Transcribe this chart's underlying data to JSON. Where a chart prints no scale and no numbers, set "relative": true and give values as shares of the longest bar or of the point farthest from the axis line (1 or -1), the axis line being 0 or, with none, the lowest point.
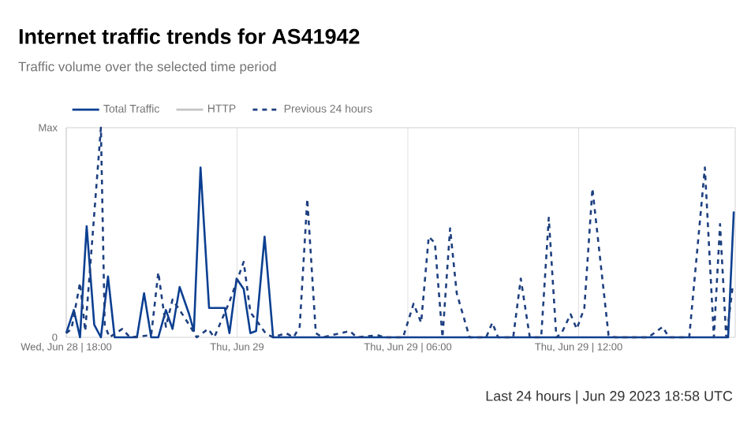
{
  "chart_data": {
    "type": "line",
    "title": "Internet traffic trends for AS41942",
    "subtitle": "Traffic volume over the selected time period",
    "relative": true,
    "xlim": [
      "2023-06-28T18:00",
      "2023-06-29T17:30"
    ],
    "xticks": [
      {
        "value": "2023-06-28T18:00",
        "label": "Wed, Jun 28 | 18:00"
      },
      {
        "value": "2023-06-29T00:00",
        "label": "Thu, Jun 29"
      },
      {
        "value": "2023-06-29T06:00",
        "label": "Thu, Jun 29 | 06:00"
      },
      {
        "value": "2023-06-29T12:00",
        "label": "Thu, Jun 29 | 12:00"
      }
    ],
    "grid": "x",
    "legend": "top left",
    "series": [
      {
        "name": "Total Traffic",
        "color": "#0b3f91",
        "line_style": "solid",
        "x": [
          "2023-06-28T18:00",
          "2023-06-28T18:16",
          "2023-06-28T18:29",
          "2023-06-28T18:43",
          "2023-06-28T18:59",
          "2023-06-28T19:13",
          "2023-06-28T19:28",
          "2023-06-28T19:42",
          "2023-06-28T19:58",
          "2023-06-28T20:29",
          "2023-06-28T20:44",
          "2023-06-28T20:59",
          "2023-06-28T21:14",
          "2023-06-28T21:30",
          "2023-06-28T21:44",
          "2023-06-28T21:59",
          "2023-06-28T22:19",
          "2023-06-28T22:29",
          "2023-06-28T22:43",
          "2023-06-28T23:01",
          "2023-06-28T23:34",
          "2023-06-28T23:44",
          "2023-06-28T23:59",
          "2023-06-29T00:14",
          "2023-06-29T00:28",
          "2023-06-29T00:40",
          "2023-06-29T00:58",
          "2023-06-29T01:16",
          "2023-06-29T17:15",
          "2023-06-29T17:27"
        ],
        "values": [
          0.02,
          0.13,
          0,
          0.53,
          0.06,
          0,
          0.29,
          0,
          0,
          0,
          0.21,
          0,
          0,
          0.13,
          0.04,
          0.24,
          0.11,
          0.03,
          0.81,
          0.14,
          0.14,
          0.02,
          0.28,
          0.23,
          0.02,
          0.03,
          0.48,
          0,
          0,
          0.6
        ]
      },
      {
        "name": "HTTP",
        "color": "#c4c4c4",
        "line_style": "solid"
      },
      {
        "name": "Previous 24 hours",
        "color": "#1d3f7f",
        "line_style": "dashed",
        "x": [
          "2023-06-28T18:00",
          "2023-06-28T18:11",
          "2023-06-28T18:29",
          "2023-06-28T18:40",
          "2023-06-28T19:13",
          "2023-06-28T19:21",
          "2023-06-28T19:31",
          "2023-06-28T19:58",
          "2023-06-28T20:14",
          "2023-06-28T20:59",
          "2023-06-28T21:14",
          "2023-06-28T21:30",
          "2023-06-28T21:44",
          "2023-06-28T21:59",
          "2023-06-28T22:19",
          "2023-06-28T22:35",
          "2023-06-28T22:59",
          "2023-06-28T23:12",
          "2023-06-28T23:44",
          "2023-06-29T00:14",
          "2023-06-29T00:28",
          "2023-06-29T00:44",
          "2023-06-29T01:00",
          "2023-06-29T01:16",
          "2023-06-29T01:43",
          "2023-06-29T01:59",
          "2023-06-29T02:12",
          "2023-06-29T02:28",
          "2023-06-29T02:46",
          "2023-06-29T03:00",
          "2023-06-29T03:58",
          "2023-06-29T04:12",
          "2023-06-29T04:56",
          "2023-06-29T05:12",
          "2023-06-29T05:50",
          "2023-06-29T06:12",
          "2023-06-29T06:28",
          "2023-06-29T06:44",
          "2023-06-29T06:57",
          "2023-06-29T07:13",
          "2023-06-29T07:29",
          "2023-06-29T07:43",
          "2023-06-29T08:10",
          "2023-06-29T08:45",
          "2023-06-29T08:58",
          "2023-06-29T09:10",
          "2023-06-29T09:42",
          "2023-06-29T09:58",
          "2023-06-29T10:17",
          "2023-06-29T10:41",
          "2023-06-29T10:57",
          "2023-06-29T11:13",
          "2023-06-29T11:24",
          "2023-06-29T11:43",
          "2023-06-29T11:56",
          "2023-06-29T12:12",
          "2023-06-29T12:29",
          "2023-06-29T13:03",
          "2023-06-29T13:17",
          "2023-06-29T14:27",
          "2023-06-29T14:57",
          "2023-06-29T15:10",
          "2023-06-29T15:53",
          "2023-06-29T16:26",
          "2023-06-29T16:45",
          "2023-06-29T16:58",
          "2023-06-29T17:11",
          "2023-06-29T17:17",
          "2023-06-29T17:25"
        ],
        "values": [
          0.02,
          0.04,
          0.26,
          0.03,
          1,
          0.06,
          0,
          0.04,
          0,
          0.01,
          0.31,
          0.05,
          0.18,
          0.13,
          0.06,
          0,
          0.04,
          0,
          0.17,
          0.36,
          0.12,
          0.07,
          0.02,
          0,
          0.02,
          0,
          0.05,
          0.66,
          0.02,
          0,
          0.03,
          0,
          0.01,
          0,
          0,
          0.16,
          0.07,
          0.48,
          0.45,
          0,
          0.52,
          0.21,
          0,
          0,
          0.07,
          0,
          0,
          0.28,
          0,
          0,
          0.57,
          0,
          0.02,
          0.11,
          0.04,
          0.14,
          0.71,
          0.01,
          0,
          0,
          0.05,
          0,
          0,
          0.81,
          0,
          0.54,
          0,
          0.1,
          0.25
        ]
      }
    ],
    "annotations": [
      "Max",
      "0",
      "Last 24 hours | Jun 29 2023 18:58 UTC"
    ]
  }
}
